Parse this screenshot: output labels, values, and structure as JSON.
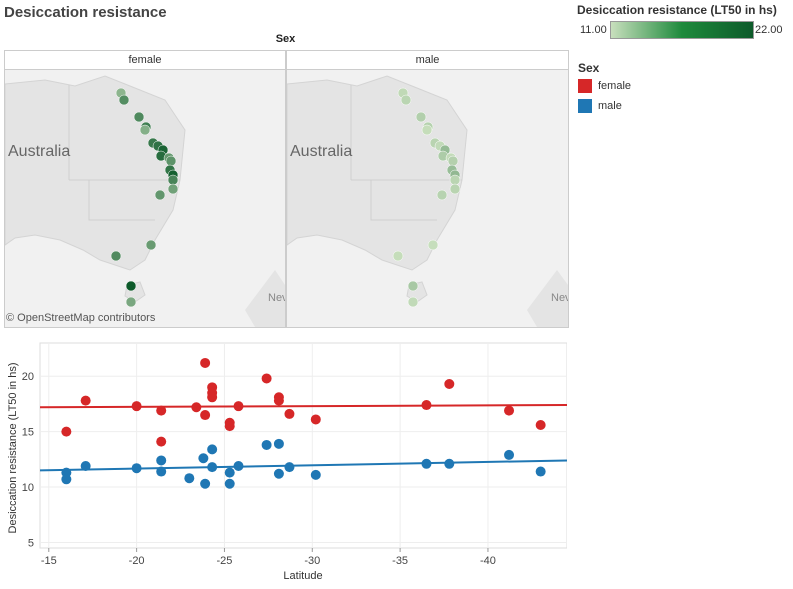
{
  "title": "Desiccation resistance",
  "color_legend": {
    "title": "Desiccation resistance (LT50 in hs)",
    "min_label": "11.00",
    "max_label": "22.00"
  },
  "sex_legend": {
    "title": "Sex",
    "items": [
      {
        "label": "female",
        "color": "#d62728"
      },
      {
        "label": "male",
        "color": "#1f77b4"
      }
    ]
  },
  "facet_header": "Sex",
  "maps": {
    "female_label": "female",
    "male_label": "male",
    "country_label": "Australia",
    "edge_label": "Nev",
    "attribution": "© OpenStreetMap contributors"
  },
  "chart_data": {
    "type": "scatter",
    "title": "",
    "xlabel": "Latitude",
    "ylabel": "Desiccation resistance (LT50 in hs)",
    "xlim": [
      -14.5,
      -44.5
    ],
    "ylim": [
      4.5,
      23
    ],
    "xticks": [
      -15,
      -20,
      -25,
      -30,
      -35,
      -40
    ],
    "yticks": [
      5,
      10,
      15,
      20
    ],
    "series": [
      {
        "name": "female",
        "color": "#d62728",
        "x": [
          -16.0,
          -17.1,
          -20.0,
          -21.4,
          -21.4,
          -23.4,
          -23.9,
          -23.9,
          -24.3,
          -24.3,
          -24.3,
          -25.3,
          -25.3,
          -25.8,
          -27.4,
          -28.1,
          -28.1,
          -28.7,
          -30.2,
          -36.5,
          -37.8,
          -41.2,
          -43.0
        ],
        "y": [
          15.0,
          17.8,
          17.3,
          16.9,
          14.1,
          17.2,
          21.2,
          16.5,
          19.0,
          18.5,
          18.1,
          15.8,
          15.5,
          17.3,
          19.8,
          18.1,
          17.8,
          16.6,
          16.1,
          17.4,
          19.3,
          16.9,
          15.6
        ],
        "trend": [
          [
            -14.5,
            17.2
          ],
          [
            -44.5,
            17.4
          ]
        ]
      },
      {
        "name": "male",
        "color": "#1f77b4",
        "x": [
          -16.0,
          -16.0,
          -17.1,
          -20.0,
          -21.4,
          -21.4,
          -23.0,
          -23.8,
          -23.9,
          -24.3,
          -24.3,
          -25.3,
          -25.3,
          -25.8,
          -27.4,
          -28.1,
          -28.1,
          -28.7,
          -30.2,
          -36.5,
          -37.8,
          -41.2,
          -43.0
        ],
        "y": [
          11.3,
          10.7,
          11.9,
          11.7,
          12.4,
          11.4,
          10.8,
          12.6,
          10.3,
          13.4,
          11.8,
          11.3,
          10.3,
          11.9,
          13.8,
          13.9,
          11.2,
          11.8,
          11.1,
          12.1,
          12.1,
          12.9,
          11.4
        ],
        "trend": [
          [
            -14.5,
            11.5
          ],
          [
            -44.5,
            12.4
          ]
        ]
      }
    ]
  },
  "map_points": {
    "female": [
      {
        "v": 14.5
      },
      {
        "v": 17.8
      },
      {
        "v": 18.1
      },
      {
        "v": 19.0
      },
      {
        "v": 19.5
      },
      {
        "v": 20.0
      },
      {
        "v": 21.2
      },
      {
        "v": 20.5
      },
      {
        "v": 16.9
      },
      {
        "v": 17.3
      },
      {
        "v": 19.8
      },
      {
        "v": 21.5
      },
      {
        "v": 18.5
      },
      {
        "v": 16.1
      },
      {
        "v": 17.0
      },
      {
        "v": 16.6
      },
      {
        "v": 18.0
      },
      {
        "v": 22.0
      },
      {
        "v": 15.6
      },
      {
        "v": 15.0
      }
    ],
    "male": [
      {
        "v": 11.5
      },
      {
        "v": 11.8
      },
      {
        "v": 12.3
      },
      {
        "v": 12.1
      },
      {
        "v": 11.9
      },
      {
        "v": 11.4
      },
      {
        "v": 14.0
      },
      {
        "v": 12.6
      },
      {
        "v": 11.3
      },
      {
        "v": 12.2
      },
      {
        "v": 13.8
      },
      {
        "v": 14.2
      },
      {
        "v": 11.8
      },
      {
        "v": 11.9
      },
      {
        "v": 12.0
      },
      {
        "v": 11.1
      },
      {
        "v": 11.2
      },
      {
        "v": 12.9
      },
      {
        "v": 11.4
      },
      {
        "v": 11.2
      }
    ]
  }
}
